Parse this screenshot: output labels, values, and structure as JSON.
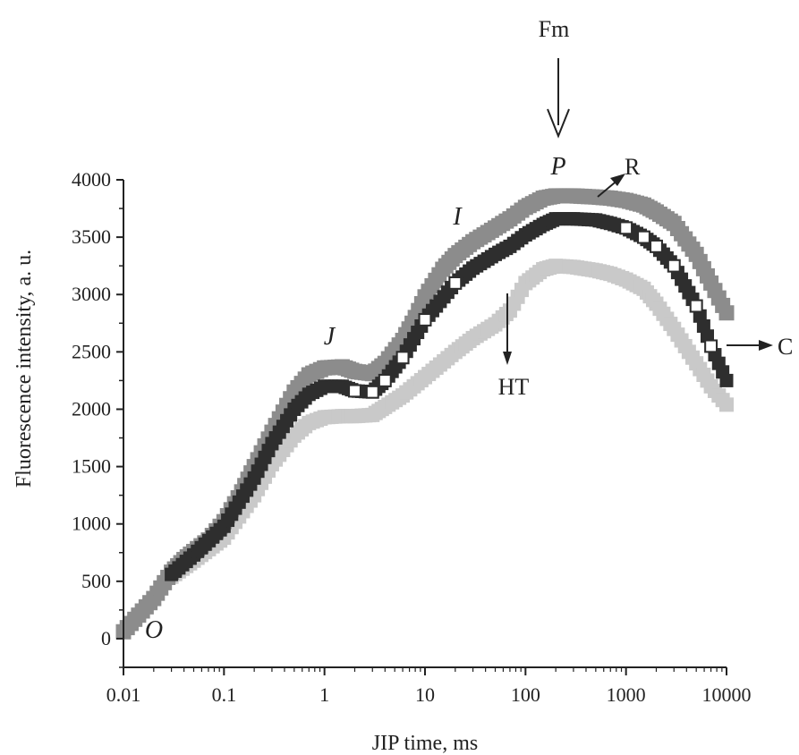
{
  "chart_data": {
    "type": "scatter",
    "xscale": "log",
    "xlabel": "JIP time, ms",
    "ylabel": "Fluorescence intensity, a. u.",
    "xlim": [
      0.01,
      10000
    ],
    "ylim": [
      -250,
      4000
    ],
    "xticks": [
      0.01,
      0.1,
      1,
      10,
      100,
      1000,
      10000
    ],
    "xtick_labels": [
      "0.01",
      "0.1",
      "1",
      "10",
      "100",
      "1000",
      "10000"
    ],
    "yticks": [
      0,
      500,
      1000,
      1500,
      2000,
      2500,
      3000,
      3500,
      4000
    ],
    "ytick_labels": [
      "0",
      "500",
      "1000",
      "1500",
      "2000",
      "2500",
      "3000",
      "3500",
      "4000"
    ],
    "series": [
      {
        "name": "R",
        "color": "#8c8c8c",
        "points": [
          [
            0.01,
            60
          ],
          [
            0.02,
            350
          ],
          [
            0.03,
            580
          ],
          [
            0.04,
            690
          ],
          [
            0.05,
            760
          ],
          [
            0.07,
            860
          ],
          [
            0.1,
            1020
          ],
          [
            0.15,
            1280
          ],
          [
            0.2,
            1500
          ],
          [
            0.3,
            1800
          ],
          [
            0.5,
            2150
          ],
          [
            0.7,
            2300
          ],
          [
            1,
            2360
          ],
          [
            1.5,
            2370
          ],
          [
            2,
            2330
          ],
          [
            3,
            2310
          ],
          [
            4,
            2400
          ],
          [
            6,
            2600
          ],
          [
            8,
            2800
          ],
          [
            10,
            2980
          ],
          [
            15,
            3220
          ],
          [
            20,
            3340
          ],
          [
            30,
            3460
          ],
          [
            50,
            3580
          ],
          [
            70,
            3660
          ],
          [
            100,
            3760
          ],
          [
            150,
            3840
          ],
          [
            200,
            3860
          ],
          [
            300,
            3860
          ],
          [
            500,
            3850
          ],
          [
            700,
            3840
          ],
          [
            1000,
            3820
          ],
          [
            1500,
            3780
          ],
          [
            2000,
            3720
          ],
          [
            3000,
            3620
          ],
          [
            5000,
            3350
          ],
          [
            7000,
            3100
          ],
          [
            10000,
            2840
          ]
        ]
      },
      {
        "name": "C",
        "color": "#2e2e2e",
        "points": [
          [
            0.03,
            560
          ],
          [
            0.05,
            730
          ],
          [
            0.1,
            980
          ],
          [
            0.2,
            1400
          ],
          [
            0.3,
            1700
          ],
          [
            0.5,
            2000
          ],
          [
            0.7,
            2130
          ],
          [
            1,
            2200
          ],
          [
            1.5,
            2200
          ],
          [
            2,
            2160
          ],
          [
            3,
            2150
          ],
          [
            4,
            2250
          ],
          [
            6,
            2450
          ],
          [
            10,
            2780
          ],
          [
            20,
            3100
          ],
          [
            30,
            3230
          ],
          [
            50,
            3350
          ],
          [
            70,
            3420
          ],
          [
            100,
            3520
          ],
          [
            150,
            3610
          ],
          [
            200,
            3660
          ],
          [
            300,
            3660
          ],
          [
            500,
            3650
          ],
          [
            700,
            3620
          ],
          [
            1000,
            3580
          ],
          [
            1500,
            3500
          ],
          [
            2000,
            3420
          ],
          [
            3000,
            3250
          ],
          [
            5000,
            2900
          ],
          [
            7000,
            2550
          ],
          [
            10000,
            2250
          ]
        ]
      },
      {
        "name": "HT",
        "color": "#c9c9c9",
        "points": [
          [
            0.03,
            540
          ],
          [
            0.05,
            680
          ],
          [
            0.1,
            880
          ],
          [
            0.2,
            1250
          ],
          [
            0.3,
            1520
          ],
          [
            0.5,
            1770
          ],
          [
            0.7,
            1880
          ],
          [
            1,
            1930
          ],
          [
            1.5,
            1940
          ],
          [
            2,
            1940
          ],
          [
            3,
            1950
          ],
          [
            4,
            2020
          ],
          [
            6,
            2120
          ],
          [
            10,
            2280
          ],
          [
            20,
            2500
          ],
          [
            30,
            2620
          ],
          [
            50,
            2740
          ],
          [
            70,
            2860
          ],
          [
            100,
            3100
          ],
          [
            150,
            3220
          ],
          [
            200,
            3250
          ],
          [
            300,
            3240
          ],
          [
            500,
            3210
          ],
          [
            700,
            3180
          ],
          [
            1000,
            3130
          ],
          [
            1500,
            3050
          ],
          [
            2000,
            2920
          ],
          [
            3000,
            2700
          ],
          [
            5000,
            2400
          ],
          [
            7000,
            2200
          ],
          [
            10000,
            2040
          ]
        ]
      }
    ],
    "annotations": {
      "O": "O",
      "J": "J",
      "I": "I",
      "P": "P",
      "Fm": "Fm",
      "R": "R",
      "C": "C",
      "HT": "HT"
    }
  }
}
